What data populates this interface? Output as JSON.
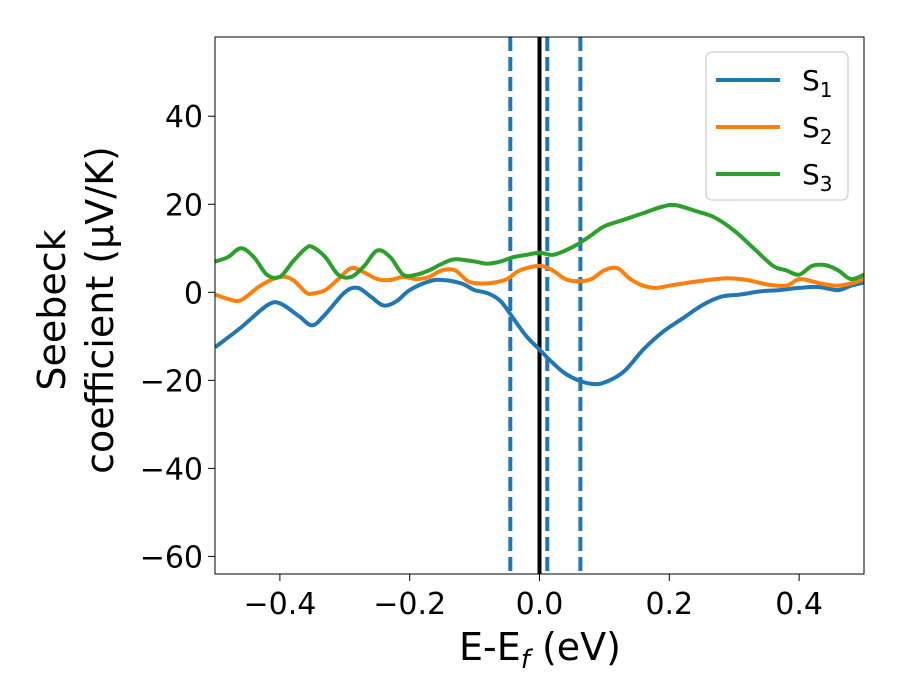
{
  "chart_data": {
    "type": "line",
    "xlabel": {
      "main": "E-E",
      "sub": "f",
      "unit": " (eV)"
    },
    "ylabel": {
      "line1": "Seebeck",
      "line2": "coefficient  (μV/K)"
    },
    "xlim": [
      -0.5,
      0.5
    ],
    "ylim": [
      -64,
      58
    ],
    "x_ticks": [
      -0.4,
      -0.2,
      0.0,
      0.2,
      0.4
    ],
    "x_tick_labels": [
      "−0.4",
      "−0.2",
      "0.0",
      "0.2",
      "0.4"
    ],
    "y_ticks": [
      -60,
      -40,
      -20,
      0,
      20,
      40
    ],
    "y_tick_labels": [
      "−60",
      "−40",
      "−20",
      "0",
      "20",
      "40"
    ],
    "grid": false,
    "legend_position": "top-right",
    "vertical_lines": [
      {
        "x": -0.045,
        "style": "dashed",
        "color": "#1f77b4"
      },
      {
        "x": 0.0,
        "style": "solid",
        "color": "#000000"
      },
      {
        "x": 0.012,
        "style": "dashed",
        "color": "#1f77b4"
      },
      {
        "x": 0.063,
        "style": "dashed",
        "color": "#1f77b4"
      }
    ],
    "series": [
      {
        "name": "S",
        "sub": "1",
        "color": "#1f77b4",
        "points": [
          [
            -0.5,
            -12.5
          ],
          [
            -0.46,
            -8
          ],
          [
            -0.42,
            -3
          ],
          [
            -0.4,
            -2.5
          ],
          [
            -0.37,
            -5.5
          ],
          [
            -0.35,
            -7.5
          ],
          [
            -0.33,
            -5
          ],
          [
            -0.3,
            0
          ],
          [
            -0.28,
            1
          ],
          [
            -0.26,
            -1
          ],
          [
            -0.24,
            -3
          ],
          [
            -0.22,
            -2
          ],
          [
            -0.2,
            0.5
          ],
          [
            -0.17,
            2.5
          ],
          [
            -0.15,
            2.8
          ],
          [
            -0.12,
            2
          ],
          [
            -0.1,
            0.5
          ],
          [
            -0.08,
            -0.2
          ],
          [
            -0.06,
            -2
          ],
          [
            -0.04,
            -6
          ],
          [
            -0.02,
            -10
          ],
          [
            0.0,
            -13
          ],
          [
            0.02,
            -16
          ],
          [
            0.04,
            -18.5
          ],
          [
            0.06,
            -20
          ],
          [
            0.08,
            -20.8
          ],
          [
            0.1,
            -20.5
          ],
          [
            0.13,
            -18
          ],
          [
            0.16,
            -13
          ],
          [
            0.19,
            -9
          ],
          [
            0.22,
            -6
          ],
          [
            0.25,
            -3
          ],
          [
            0.28,
            -1
          ],
          [
            0.31,
            -0.5
          ],
          [
            0.34,
            0.2
          ],
          [
            0.37,
            0.5
          ],
          [
            0.4,
            1
          ],
          [
            0.43,
            1.2
          ],
          [
            0.46,
            0.5
          ],
          [
            0.48,
            1.5
          ],
          [
            0.5,
            2.2
          ]
        ]
      },
      {
        "name": "S",
        "sub": "2",
        "color": "#ff7f0e",
        "points": [
          [
            -0.5,
            -0.5
          ],
          [
            -0.48,
            -1.5
          ],
          [
            -0.46,
            -1.8
          ],
          [
            -0.43,
            1.5
          ],
          [
            -0.4,
            3.5
          ],
          [
            -0.38,
            2.8
          ],
          [
            -0.36,
            0
          ],
          [
            -0.35,
            -0.3
          ],
          [
            -0.33,
            0.5
          ],
          [
            -0.31,
            3
          ],
          [
            -0.29,
            5.5
          ],
          [
            -0.27,
            4.5
          ],
          [
            -0.25,
            3
          ],
          [
            -0.23,
            2.8
          ],
          [
            -0.21,
            3.5
          ],
          [
            -0.19,
            3
          ],
          [
            -0.17,
            3.5
          ],
          [
            -0.15,
            5
          ],
          [
            -0.13,
            5
          ],
          [
            -0.11,
            2.5
          ],
          [
            -0.09,
            2
          ],
          [
            -0.07,
            2.2
          ],
          [
            -0.05,
            3
          ],
          [
            -0.03,
            5
          ],
          [
            0.0,
            6
          ],
          [
            0.02,
            5
          ],
          [
            0.04,
            3
          ],
          [
            0.06,
            2.5
          ],
          [
            0.08,
            3
          ],
          [
            0.1,
            5
          ],
          [
            0.12,
            5.5
          ],
          [
            0.14,
            3
          ],
          [
            0.16,
            1.5
          ],
          [
            0.18,
            1
          ],
          [
            0.2,
            1.5
          ],
          [
            0.23,
            2.2
          ],
          [
            0.26,
            2.8
          ],
          [
            0.29,
            3.2
          ],
          [
            0.32,
            2.8
          ],
          [
            0.35,
            1.8
          ],
          [
            0.38,
            1.5
          ],
          [
            0.4,
            3
          ],
          [
            0.42,
            2.5
          ],
          [
            0.44,
            1.8
          ],
          [
            0.46,
            1.5
          ],
          [
            0.48,
            2
          ],
          [
            0.5,
            3
          ]
        ]
      },
      {
        "name": "S",
        "sub": "3",
        "color": "#2ca02c",
        "points": [
          [
            -0.5,
            7
          ],
          [
            -0.48,
            8
          ],
          [
            -0.46,
            10
          ],
          [
            -0.44,
            8
          ],
          [
            -0.42,
            4
          ],
          [
            -0.4,
            3.5
          ],
          [
            -0.38,
            7
          ],
          [
            -0.36,
            10
          ],
          [
            -0.35,
            10.3
          ],
          [
            -0.33,
            8
          ],
          [
            -0.31,
            4
          ],
          [
            -0.29,
            3.5
          ],
          [
            -0.27,
            6
          ],
          [
            -0.25,
            9.5
          ],
          [
            -0.23,
            8
          ],
          [
            -0.21,
            4
          ],
          [
            -0.19,
            4
          ],
          [
            -0.17,
            5
          ],
          [
            -0.15,
            6.5
          ],
          [
            -0.13,
            7.5
          ],
          [
            -0.1,
            7
          ],
          [
            -0.08,
            6.5
          ],
          [
            -0.06,
            7
          ],
          [
            -0.04,
            8
          ],
          [
            -0.02,
            8.5
          ],
          [
            0.0,
            9
          ],
          [
            0.02,
            8.5
          ],
          [
            0.04,
            9.5
          ],
          [
            0.06,
            11
          ],
          [
            0.08,
            13
          ],
          [
            0.1,
            15
          ],
          [
            0.13,
            16.5
          ],
          [
            0.16,
            18
          ],
          [
            0.19,
            19.5
          ],
          [
            0.21,
            19.8
          ],
          [
            0.24,
            18.5
          ],
          [
            0.27,
            17
          ],
          [
            0.3,
            14
          ],
          [
            0.33,
            10
          ],
          [
            0.36,
            6
          ],
          [
            0.38,
            5
          ],
          [
            0.4,
            4
          ],
          [
            0.42,
            6
          ],
          [
            0.44,
            6.2
          ],
          [
            0.46,
            5
          ],
          [
            0.48,
            3
          ],
          [
            0.5,
            4
          ]
        ]
      }
    ]
  }
}
